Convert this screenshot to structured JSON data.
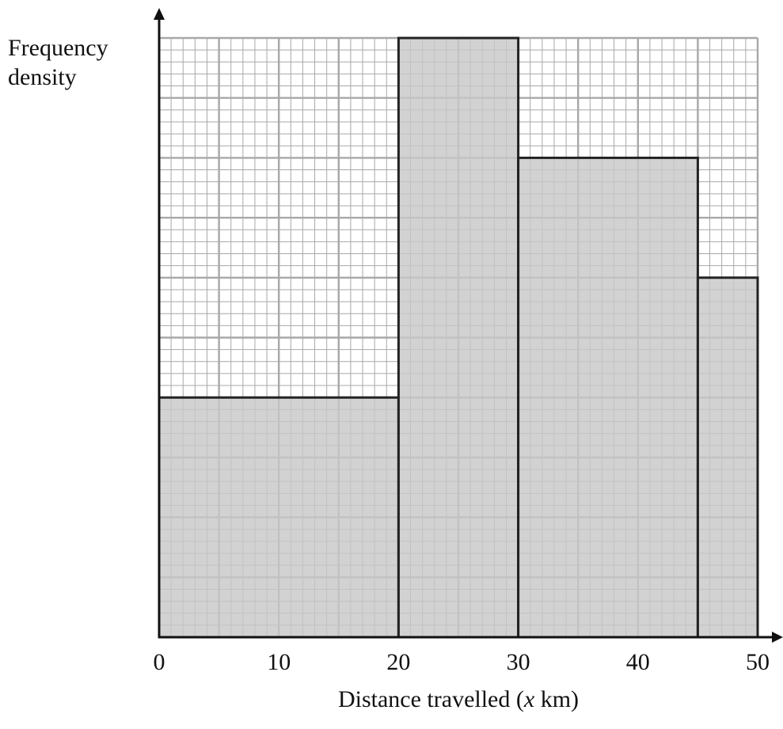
{
  "chart_data": {
    "type": "histogram",
    "ylabel_lines": [
      "Frequency",
      "density"
    ],
    "xlabel_prefix": "Distance travelled (",
    "xlabel_var": "x",
    "xlabel_suffix": " km)",
    "x_ticks": [
      "0",
      "10",
      "20",
      "30",
      "40",
      "50"
    ],
    "xlim": [
      0,
      50
    ],
    "ylim": [
      0,
      50
    ],
    "grid": true,
    "y_tick_labels_shown": false,
    "bars": [
      {
        "x_start": 0,
        "x_end": 20,
        "height": 20
      },
      {
        "x_start": 20,
        "x_end": 30,
        "height": 50
      },
      {
        "x_start": 30,
        "x_end": 45,
        "height": 40
      },
      {
        "x_start": 45,
        "x_end": 50,
        "height": 30
      }
    ],
    "colors": {
      "bar_fill": "#c8c8c8",
      "bar_edge": "#222222",
      "grid": "#a8a8a8",
      "axis": "#111111"
    }
  }
}
